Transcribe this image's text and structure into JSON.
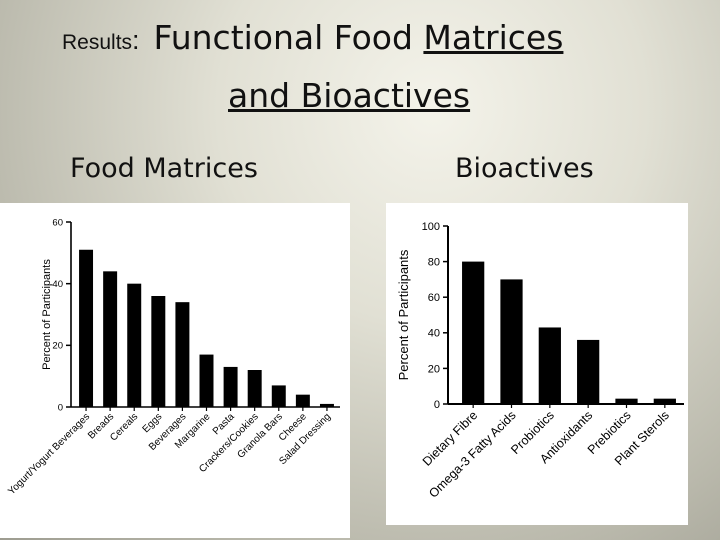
{
  "slide": {
    "results_label": "Results",
    "colon": ":",
    "title_part1": "Functional Food ",
    "title_part2_underlined": "Matrices",
    "title_line2": "and Bioactives"
  },
  "left_heading": "Food Matrices",
  "right_heading": "Bioactives",
  "chart_data": [
    {
      "type": "bar",
      "ylabel": "Percent of Participants",
      "xlabel": "",
      "ylim": [
        0,
        60
      ],
      "yticks": [
        0,
        20,
        40,
        60
      ],
      "categories": [
        "Yogurt/Yogurt Beverages",
        "Breads",
        "Cereals",
        "Eggs",
        "Beverages",
        "Margarine",
        "Pasta",
        "Crackers/Cookies",
        "Granola Bars",
        "Cheese",
        "Salad Dressing"
      ],
      "values": [
        51,
        44,
        40,
        36,
        34,
        17,
        13,
        12,
        7,
        4,
        1
      ],
      "bar_color": "#000000",
      "grid": false
    },
    {
      "type": "bar",
      "ylabel": "Percent of Participants",
      "xlabel": "",
      "ylim": [
        0,
        100
      ],
      "yticks": [
        0,
        20,
        40,
        60,
        80,
        100
      ],
      "categories": [
        "Dietary Fibre",
        "Omega-3 Fatty Acids",
        "Probiotics",
        "Antioxidants",
        "Prebiotics",
        "Plant Sterols"
      ],
      "values": [
        80,
        70,
        43,
        36,
        3,
        3
      ],
      "bar_color": "#000000",
      "grid": false
    }
  ]
}
